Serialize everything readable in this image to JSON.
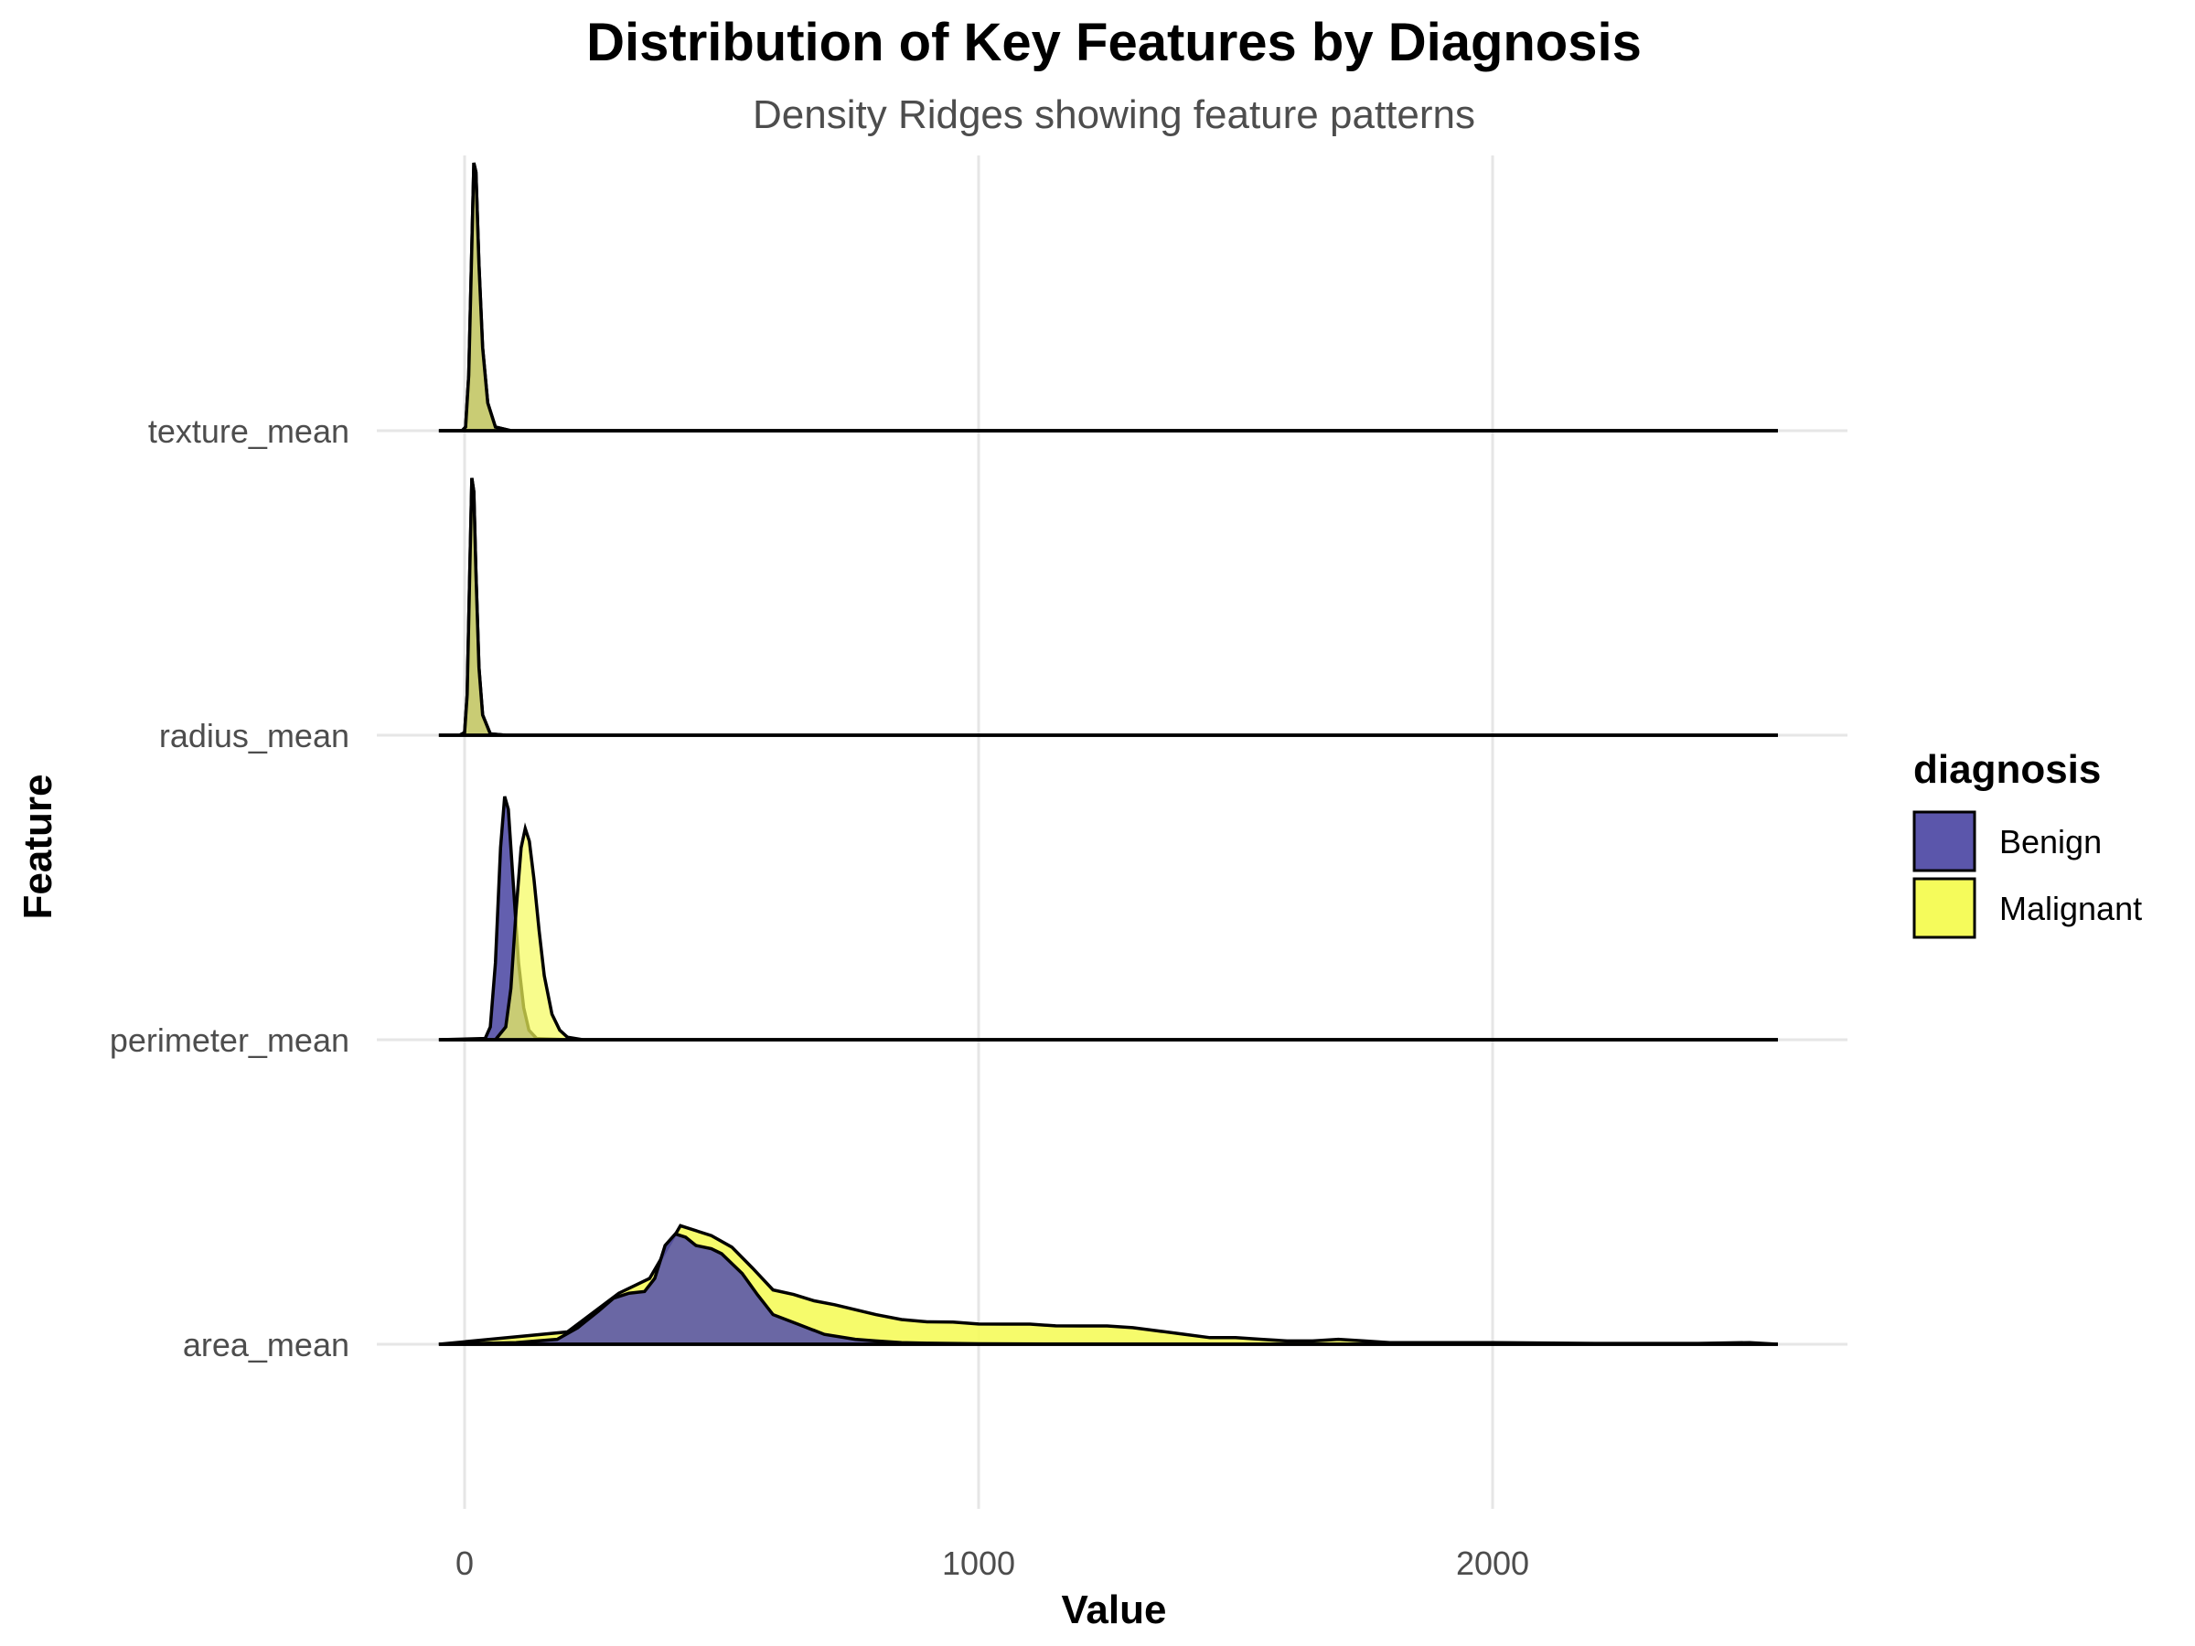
{
  "chart_data": {
    "type": "area",
    "subtype": "density-ridges",
    "title": "Distribution of Key Features by Diagnosis",
    "subtitle": "Density Ridges showing feature patterns",
    "xlabel": "Value",
    "ylabel": "Feature",
    "xlim": [
      -150,
      2700
    ],
    "xticks": [
      0,
      1000,
      2000
    ],
    "grid": true,
    "legend": {
      "title": "diagnosis",
      "position": "right"
    },
    "colors": {
      "Benign": "#5b56ab",
      "Malignant": "#f5fb5b",
      "overlap": "#c2c24c",
      "outline": "#000000",
      "grid": "#e6e6e6"
    },
    "categories": [
      "area_mean",
      "perimeter_mean",
      "radius_mean",
      "texture_mean"
    ],
    "series": [
      {
        "name": "Benign",
        "ridges": [
          {
            "feature": "area_mean",
            "mode": "stacked",
            "x": [
              -50,
              100,
              180,
              220,
              260,
              290,
              320,
              350,
              370,
              390,
              410,
              430,
              450,
              480,
              500,
              540,
              570,
              600,
              650,
              700,
              760,
              800,
              850,
              900,
              1000,
              1200,
              1500,
              2555
            ],
            "density": [
              0,
              0.0001,
              0.0003,
              0.001,
              0.002,
              0.0028,
              0.0031,
              0.0032,
              0.004,
              0.006,
              0.0067,
              0.0065,
              0.006,
              0.0058,
              0.0055,
              0.0043,
              0.003,
              0.0018,
              0.0012,
              0.0006,
              0.0003,
              0.0002,
              0.0001,
              6e-05,
              3e-05,
              1e-05,
              0,
              0
            ]
          },
          {
            "feature": "perimeter_mean",
            "mode": "overlay",
            "x": [
              -50,
              40,
              50,
              60,
              70,
              78,
              85,
              95,
              105,
              115,
              125,
              140,
              200,
              2555
            ],
            "density": [
              0,
              0.0002,
              0.002,
              0.012,
              0.03,
              0.038,
              0.036,
              0.024,
              0.012,
              0.005,
              0.0015,
              0.0002,
              0,
              0
            ]
          },
          {
            "feature": "radius_mean",
            "mode": "overlay",
            "x": [
              -50,
              -10,
              0,
              5,
              10,
              14,
              18,
              22,
              28,
              35,
              50,
              80,
              2555
            ],
            "density": [
              0,
              0.0,
              0.002,
              0.03,
              0.12,
              0.19,
              0.18,
              0.12,
              0.05,
              0.015,
              0.001,
              0,
              0
            ]
          },
          {
            "feature": "texture_mean",
            "mode": "overlay",
            "x": [
              -50,
              -5,
              2,
              8,
              14,
              18,
              22,
              28,
              35,
              45,
              60,
              90,
              2555
            ],
            "density": [
              0,
              0.0,
              0.002,
              0.03,
              0.1,
              0.145,
              0.14,
              0.09,
              0.045,
              0.015,
              0.002,
              0,
              0
            ]
          }
        ]
      },
      {
        "name": "Malignant",
        "ridges": [
          {
            "feature": "area_mean",
            "mode": "stacked",
            "x": [
              -50,
              200,
              300,
              360,
              420,
              480,
              520,
              560,
              600,
              640,
              680,
              720,
              760,
              800,
              850,
              900,
              950,
              1000,
              1050,
              1100,
              1150,
              1200,
              1250,
              1300,
              1350,
              1400,
              1450,
              1500,
              1550,
              1600,
              1650,
              1700,
              1750,
              1800,
              1900,
              2000,
              2200,
              2400,
              2500,
              2555
            ],
            "density": [
              0,
              0.0001,
              0.0002,
              0.0004,
              0.0006,
              0.0008,
              0.001,
              0.0012,
              0.0015,
              0.0017,
              0.0018,
              0.0019,
              0.0018,
              0.0016,
              0.0014,
              0.0013,
              0.0013,
              0.0012,
              0.0012,
              0.0012,
              0.0011,
              0.0011,
              0.0011,
              0.001,
              0.0008,
              0.0006,
              0.0004,
              0.0004,
              0.0003,
              0.0002,
              0.0002,
              0.0003,
              0.0002,
              0.0001,
              0.0001,
              0.0001,
              5e-05,
              5e-05,
              0.0001,
              0
            ]
          },
          {
            "feature": "perimeter_mean",
            "mode": "overlay",
            "x": [
              -50,
              60,
              80,
              90,
              100,
              110,
              118,
              126,
              135,
              145,
              155,
              170,
              185,
              200,
              230,
              2555
            ],
            "density": [
              0,
              0.0,
              0.002,
              0.008,
              0.02,
              0.03,
              0.033,
              0.031,
              0.025,
              0.017,
              0.01,
              0.004,
              0.0015,
              0.0004,
              0,
              0
            ]
          },
          {
            "feature": "radius_mean",
            "mode": "overlay",
            "x": [
              -50,
              -10,
              0,
              5,
              10,
              14,
              18,
              22,
              28,
              35,
              50,
              80,
              2555
            ],
            "density": [
              0,
              0.0,
              0.002,
              0.03,
              0.12,
              0.19,
              0.18,
              0.12,
              0.05,
              0.015,
              0.001,
              0,
              0
            ]
          },
          {
            "feature": "texture_mean",
            "mode": "overlay",
            "x": [
              -50,
              -5,
              2,
              8,
              14,
              18,
              22,
              28,
              35,
              45,
              60,
              90,
              2555
            ],
            "density": [
              0,
              0.0,
              0.002,
              0.03,
              0.1,
              0.145,
              0.14,
              0.09,
              0.045,
              0.015,
              0.002,
              0,
              0
            ]
          }
        ]
      }
    ]
  }
}
